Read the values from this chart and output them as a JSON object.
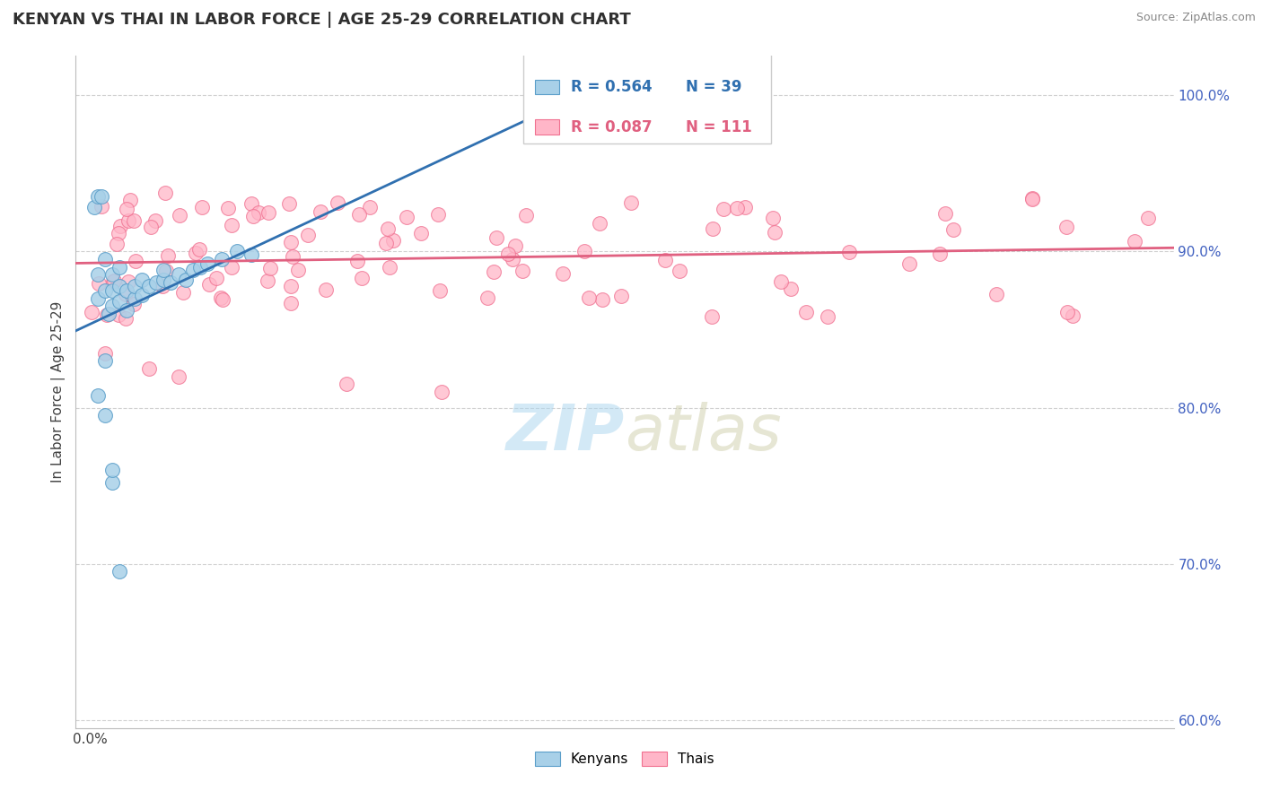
{
  "title": "KENYAN VS THAI IN LABOR FORCE | AGE 25-29 CORRELATION CHART",
  "source_text": "Source: ZipAtlas.com",
  "ylabel": "In Labor Force | Age 25-29",
  "kenyan_R": 0.564,
  "kenyan_N": 39,
  "thai_R": 0.087,
  "thai_N": 111,
  "kenyan_color": "#a8d0e8",
  "thai_color": "#ffb6c8",
  "kenyan_edge_color": "#5a9ec9",
  "thai_edge_color": "#f07090",
  "kenyan_line_color": "#3070b0",
  "thai_line_color": "#e06080",
  "watermark_color": "#b0d8f0",
  "ytick_color": "#4060c0",
  "xtick_color": "#404040",
  "grid_color": "#d0d0d0",
  "xlim": [
    -0.002,
    0.148
  ],
  "ylim": [
    0.595,
    1.025
  ],
  "y_ticks": [
    0.6,
    0.7,
    0.8,
    0.9,
    1.0
  ],
  "y_tick_labels": [
    "60.0%",
    "70.0%",
    "80.0%",
    "90.0%",
    "100.0%"
  ],
  "x_ticks": [
    0.0,
    0.02,
    0.04,
    0.06,
    0.08,
    0.1,
    0.12,
    0.14
  ],
  "x_tick_labels": [
    "0.0%",
    "",
    "",
    "",
    "",
    "",
    "",
    ""
  ]
}
